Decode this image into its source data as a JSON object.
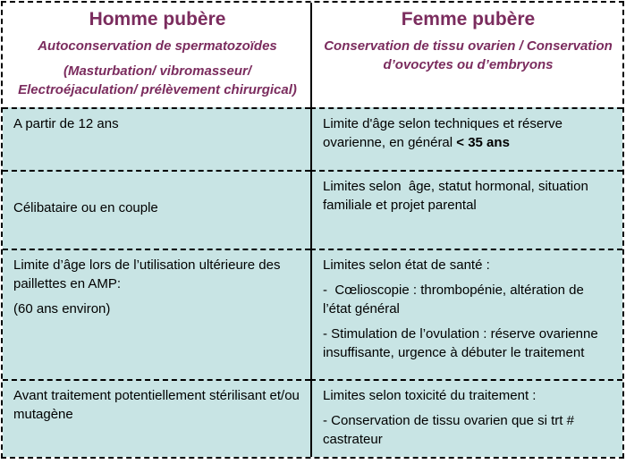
{
  "colors": {
    "accent_purple": "#7b2c5e",
    "cell_teal": "#c8e4e4",
    "border_black": "#000000"
  },
  "header": {
    "homme": {
      "title": "Homme pubère",
      "subtitle1": "Autoconservation de spermatozoïdes",
      "subtitle2": "(Masturbation/ vibromasseur/ Electroéjaculation/ prélèvement chirurgical)"
    },
    "femme": {
      "title": "Femme pubère",
      "subtitle1": "Conservation de tissu ovarien / Conservation d’ovocytes ou d’embryons"
    }
  },
  "rows": {
    "r1": {
      "left": "A partir de 12 ans",
      "right_text": "Limite d'âge selon techniques et réserve ovarienne, en général ",
      "right_bold": "< 35 ans"
    },
    "r2": {
      "left": "Célibataire ou en couple",
      "right": "Limites selon  âge, statut hormonal, situation familiale et projet parental"
    },
    "r3": {
      "left1": "Limite d’âge lors de l’utilisation ultérieure des paillettes en AMP:",
      "left2": "(60 ans environ)",
      "right1": "Limites selon état de santé :",
      "right2": "-  Cœlioscopie : thrombopénie, altération de l’état général",
      "right3": "- Stimulation de l’ovulation : réserve ovarienne insuffisante, urgence à débuter le traitement"
    },
    "r4": {
      "left": "Avant traitement potentiellement stérilisant et/ou mutagène",
      "right1": "Limites selon toxicité du traitement :",
      "right2": "- Conservation de tissu ovarien que si trt # castrateur"
    }
  }
}
